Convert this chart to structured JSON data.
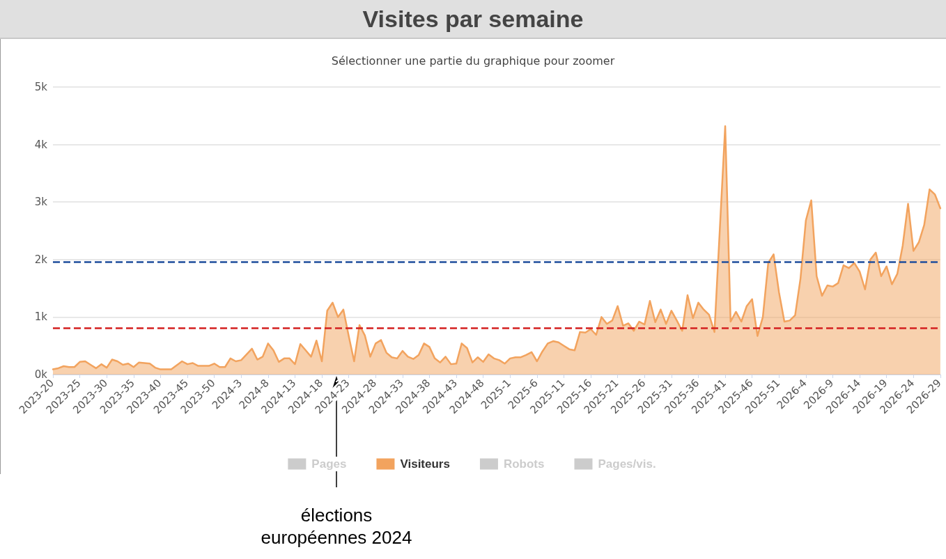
{
  "chart_data": {
    "type": "area",
    "title": "Visites par semaine",
    "subtitle": "Sélectionner une partie du graphique pour zoomer",
    "categories": [
      "2023-20",
      null,
      null,
      null,
      null,
      "2023-25",
      null,
      null,
      null,
      null,
      "2023-30",
      null,
      null,
      null,
      null,
      "2023-35",
      null,
      null,
      null,
      null,
      "2023-40",
      null,
      null,
      null,
      null,
      "2023-45",
      null,
      null,
      null,
      null,
      "2023-50",
      null,
      null,
      null,
      null,
      "2024-3",
      null,
      null,
      null,
      null,
      "2024-8",
      null,
      null,
      null,
      null,
      "2024-13",
      null,
      null,
      null,
      null,
      "2024-18",
      null,
      null,
      null,
      null,
      "2024-23",
      null,
      null,
      null,
      null,
      "2024-28",
      null,
      null,
      null,
      null,
      "2024-33",
      null,
      null,
      null,
      null,
      "2024-38",
      null,
      null,
      null,
      null,
      "2024-43",
      null,
      null,
      null,
      null,
      "2024-48",
      null,
      null,
      null,
      null,
      "2025-1",
      null,
      null,
      null,
      null,
      "2025-6",
      null,
      null,
      null,
      null,
      "2025-11",
      null,
      null,
      null,
      null,
      "2025-16",
      null,
      null,
      null,
      null,
      "2025-21",
      null,
      null,
      null,
      null,
      "2025-26",
      null,
      null,
      null,
      null,
      "2025-31",
      null,
      null,
      null,
      null,
      "2025-36",
      null,
      null,
      null,
      null,
      "2025-41",
      null,
      null,
      null,
      null,
      "2025-46",
      null,
      null,
      null,
      null,
      "2025-51",
      null,
      null,
      null,
      null,
      "2026-4",
      null,
      null,
      null,
      null,
      "2026-9",
      null,
      null,
      null,
      null,
      "2026-14",
      null,
      null,
      null,
      null,
      "2026-19",
      null,
      null,
      null,
      null,
      "2026-24",
      null,
      null,
      null,
      null,
      "2026-29"
    ],
    "series": [
      {
        "name": "Pages",
        "color": "#cccccc",
        "values": [
          null,
          null,
          null,
          null,
          null,
          null,
          null,
          null,
          null,
          null,
          null,
          null,
          null,
          null,
          null,
          null,
          null,
          null,
          null,
          null,
          null,
          null,
          null,
          null,
          null,
          null,
          null,
          null,
          null,
          null,
          null,
          null,
          null,
          null,
          null,
          null,
          null,
          null,
          null,
          null,
          null,
          null,
          null,
          null,
          null,
          null,
          null,
          null,
          null,
          null,
          null,
          null,
          null,
          null,
          null,
          null,
          null,
          null,
          null,
          null,
          null,
          null,
          null,
          null,
          null,
          null,
          null,
          null,
          null,
          null,
          null,
          null,
          null,
          null,
          null,
          null,
          null,
          null,
          null,
          null,
          null,
          null,
          null,
          null,
          null,
          null,
          null,
          null,
          null,
          null,
          null,
          null,
          null,
          null,
          null,
          null,
          null,
          null,
          null,
          null,
          null,
          null,
          null,
          null,
          null,
          null,
          null,
          null,
          null,
          null,
          null,
          null,
          null,
          null,
          null,
          null,
          null,
          null,
          null,
          null,
          null,
          null,
          null,
          null,
          null,
          null,
          null,
          null,
          null,
          null,
          null,
          null,
          null,
          null,
          null,
          null,
          null,
          null,
          null,
          null,
          null,
          null,
          null,
          null,
          null,
          null,
          null,
          null,
          null,
          null,
          null,
          null,
          null,
          null,
          null,
          null,
          null,
          null,
          null,
          null,
          null,
          null,
          null,
          null,
          null,
          null
        ]
      },
      {
        "name": "Visiteurs",
        "color": "#f2a35e",
        "values": [
          90,
          110,
          145,
          130,
          130,
          220,
          230,
          170,
          110,
          180,
          120,
          260,
          230,
          170,
          190,
          130,
          210,
          200,
          190,
          120,
          90,
          90,
          90,
          160,
          230,
          180,
          200,
          150,
          150,
          150,
          190,
          130,
          130,
          280,
          230,
          250,
          350,
          450,
          260,
          310,
          540,
          420,
          220,
          280,
          280,
          180,
          530,
          420,
          310,
          590,
          230,
          1110,
          1250,
          1000,
          1130,
          670,
          230,
          860,
          680,
          310,
          540,
          600,
          380,
          300,
          280,
          410,
          310,
          270,
          340,
          540,
          480,
          280,
          210,
          310,
          180,
          190,
          540,
          460,
          210,
          300,
          220,
          350,
          280,
          250,
          190,
          280,
          300,
          300,
          340,
          390,
          230,
          400,
          540,
          580,
          560,
          500,
          440,
          420,
          740,
          730,
          790,
          690,
          1000,
          880,
          940,
          1190,
          850,
          890,
          760,
          920,
          870,
          1280,
          910,
          1130,
          880,
          1110,
          940,
          760,
          1380,
          980,
          1250,
          1130,
          1040,
          740,
          2530,
          4320,
          920,
          1090,
          920,
          1190,
          1310,
          670,
          1000,
          1940,
          2090,
          1430,
          920,
          940,
          1030,
          1670,
          2680,
          3030,
          1710,
          1370,
          1550,
          1530,
          1590,
          1900,
          1850,
          1940,
          1790,
          1480,
          2000,
          2120,
          1710,
          1880,
          1570,
          1750,
          2240,
          2970,
          2150,
          2300,
          2600,
          3220,
          3130,
          2890
        ]
      },
      {
        "name": "Robots",
        "color": "#cccccc",
        "values": [
          null,
          null,
          null,
          null,
          null,
          null,
          null,
          null,
          null,
          null,
          null,
          null,
          null,
          null,
          null,
          null,
          null,
          null,
          null,
          null,
          null,
          null,
          null,
          null,
          null,
          null,
          null,
          null,
          null,
          null,
          null,
          null,
          null,
          null,
          null,
          null,
          null,
          null,
          null,
          null,
          null,
          null,
          null,
          null,
          null,
          null,
          null,
          null,
          null,
          null,
          null,
          null,
          null,
          null,
          null,
          null,
          null,
          null,
          null,
          null,
          null,
          null,
          null,
          null,
          null,
          null,
          null,
          null,
          null,
          null,
          null,
          null,
          null,
          null,
          null,
          null,
          null,
          null,
          null,
          null,
          null,
          null,
          null,
          null,
          null,
          null,
          null,
          null,
          null,
          null,
          null,
          null,
          null,
          null,
          null,
          null,
          null,
          null,
          null,
          null,
          null,
          null,
          null,
          null,
          null,
          null,
          null,
          null,
          null,
          null,
          null,
          null,
          null,
          null,
          null,
          null,
          null,
          null,
          null,
          null,
          null,
          null,
          null,
          null,
          null,
          null,
          null,
          null,
          null,
          null,
          null,
          null,
          null,
          null,
          null,
          null,
          null,
          null,
          null,
          null,
          null,
          null,
          null,
          null,
          null,
          null,
          null,
          null,
          null,
          null,
          null,
          null,
          null,
          null,
          null,
          null,
          null,
          null,
          null,
          null,
          null,
          null,
          null,
          null,
          null,
          null
        ]
      },
      {
        "name": "Pages/vis.",
        "color": "#cccccc",
        "values": [
          null,
          null,
          null,
          null,
          null,
          null,
          null,
          null,
          null,
          null,
          null,
          null,
          null,
          null,
          null,
          null,
          null,
          null,
          null,
          null,
          null,
          null,
          null,
          null,
          null,
          null,
          null,
          null,
          null,
          null,
          null,
          null,
          null,
          null,
          null,
          null,
          null,
          null,
          null,
          null,
          null,
          null,
          null,
          null,
          null,
          null,
          null,
          null,
          null,
          null,
          null,
          null,
          null,
          null,
          null,
          null,
          null,
          null,
          null,
          null,
          null,
          null,
          null,
          null,
          null,
          null,
          null,
          null,
          null,
          null,
          null,
          null,
          null,
          null,
          null,
          null,
          null,
          null,
          null,
          null,
          null,
          null,
          null,
          null,
          null,
          null,
          null,
          null,
          null,
          null,
          null,
          null,
          null,
          null,
          null,
          null,
          null,
          null,
          null,
          null,
          null,
          null,
          null,
          null,
          null,
          null,
          null,
          null,
          null,
          null,
          null,
          null,
          null,
          null,
          null,
          null,
          null,
          null,
          null,
          null,
          null,
          null,
          null,
          null,
          null,
          null,
          null,
          null,
          null,
          null,
          null,
          null,
          null,
          null,
          null,
          null,
          null,
          null,
          null,
          null,
          null,
          null,
          null,
          null,
          null,
          null,
          null,
          null,
          null,
          null,
          null,
          null,
          null,
          null,
          null,
          null,
          null,
          null,
          null,
          null,
          null,
          null,
          null,
          null,
          null,
          null
        ]
      }
    ],
    "ylim": [
      0,
      5000
    ],
    "yticks": [
      {
        "value": 0,
        "label": "0k"
      },
      {
        "value": 1000,
        "label": "1k"
      },
      {
        "value": 2000,
        "label": "2k"
      },
      {
        "value": 3000,
        "label": "3k"
      },
      {
        "value": 4000,
        "label": "4k"
      },
      {
        "value": 5000,
        "label": "5k"
      }
    ],
    "ref_lines": [
      {
        "axis": "y",
        "value": 1960,
        "color": "#1f4e9c",
        "line_style": "dashed"
      },
      {
        "axis": "y",
        "value": 810,
        "color": "#d42020",
        "line_style": "dashed"
      }
    ],
    "annotations": [
      "élections européennes 2024"
    ],
    "grid": "y",
    "legend": "bottom",
    "marker": "none",
    "line_style": "solid"
  }
}
